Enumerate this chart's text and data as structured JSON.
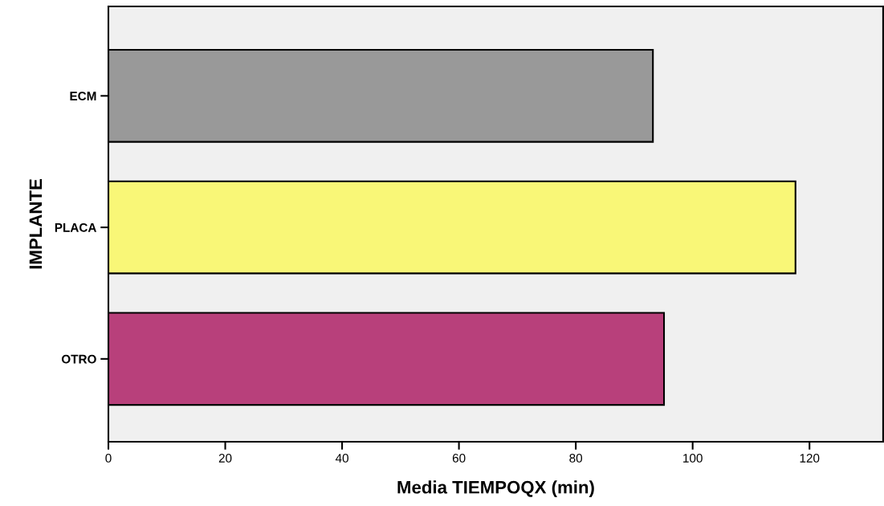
{
  "chart_data": {
    "type": "bar",
    "orientation": "horizontal",
    "xlabel": "Media TIEMPOQX (min)",
    "ylabel": "IMPLANTE",
    "categories": [
      "ECM",
      "PLACA",
      "OTRO"
    ],
    "values": [
      93.2,
      117.6,
      95.1
    ],
    "colors": [
      "#999999",
      "#f9f777",
      "#b8407b"
    ],
    "xlim": [
      0,
      132.6
    ],
    "xticks": [
      0,
      20,
      40,
      60,
      80,
      100,
      120
    ],
    "grid": false,
    "legend": false
  }
}
